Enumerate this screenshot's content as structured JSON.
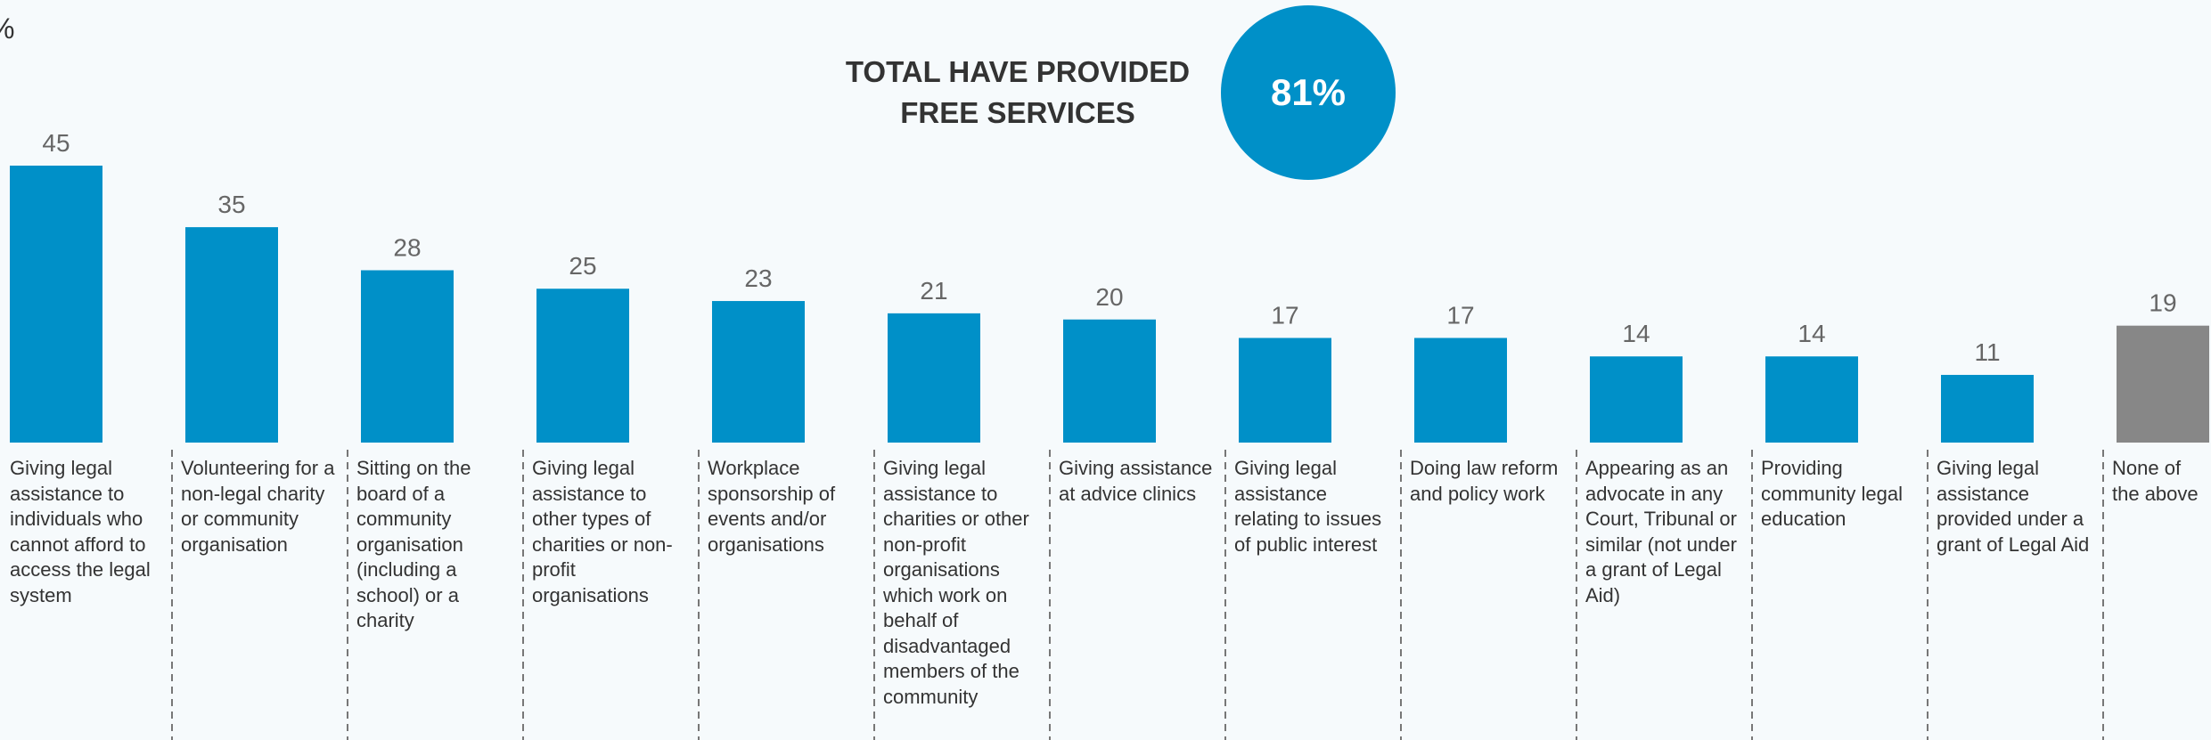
{
  "chart_data": {
    "type": "bar",
    "unit": "%",
    "highlight": {
      "label": "TOTAL HAVE PROVIDED FREE SERVICES",
      "value": 81,
      "value_label": "81%",
      "color": "#0090c8"
    },
    "categories": [
      "Giving legal assistance to individuals who cannot afford to access the legal system",
      "Volunteering for a non-legal charity or community organisation",
      "Sitting on the board of a community organisation (including a school) or a charity",
      "Giving legal assistance to other types of charities or non-profit organisations",
      "Workplace sponsorship of events and/or organisations",
      "Giving legal assistance to charities or other non-profit organisations which work on behalf of disadvantaged members of the community",
      "Giving assistance at advice clinics",
      "Giving legal assistance relating to issues of public interest",
      "Doing law reform and policy work",
      "Appearing as an advocate in any Court, Tribunal or similar (not under a grant of Legal Aid)",
      "Providing community legal education",
      "Giving legal assistance provided under a grant of Legal Aid",
      "None of the above"
    ],
    "values": [
      45,
      35,
      28,
      25,
      23,
      21,
      20,
      17,
      17,
      14,
      14,
      11,
      19
    ],
    "colors": [
      "#0090c8",
      "#0090c8",
      "#0090c8",
      "#0090c8",
      "#0090c8",
      "#0090c8",
      "#0090c8",
      "#0090c8",
      "#0090c8",
      "#0090c8",
      "#0090c8",
      "#0090c8",
      "#878787"
    ],
    "ylim": [
      0,
      45
    ]
  }
}
